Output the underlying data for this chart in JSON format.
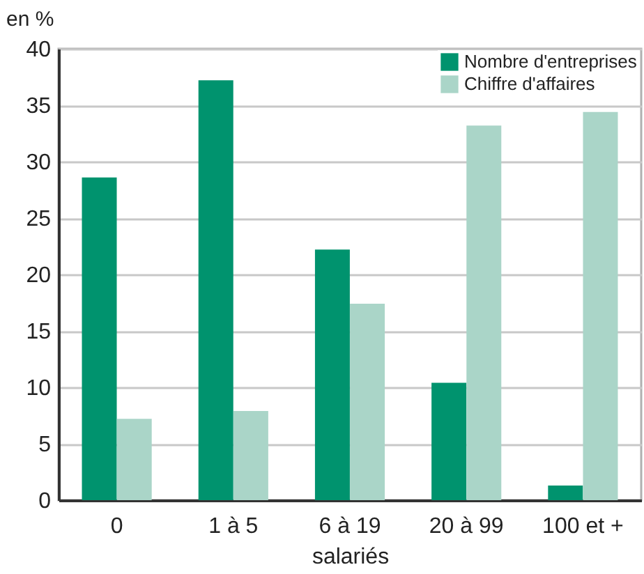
{
  "chart_data": {
    "type": "bar",
    "ylabel": "en %",
    "xlabel": "salariés",
    "categories": [
      "0",
      "1 à 5",
      "6 à 19",
      "20 à 99",
      "100 et +"
    ],
    "series": [
      {
        "name": "Nombre d'entreprises",
        "color": "#00936e",
        "values": [
          28.6,
          37.2,
          22.2,
          10.4,
          1.3
        ]
      },
      {
        "name": "Chiffre d'affaires",
        "color": "#aad5c8",
        "values": [
          7.2,
          7.9,
          17.4,
          33.2,
          34.4
        ]
      }
    ],
    "ylim": [
      0,
      40
    ],
    "yticks": [
      0,
      5,
      10,
      15,
      20,
      25,
      30,
      35,
      40
    ],
    "grid": "y",
    "legend": "top right"
  }
}
